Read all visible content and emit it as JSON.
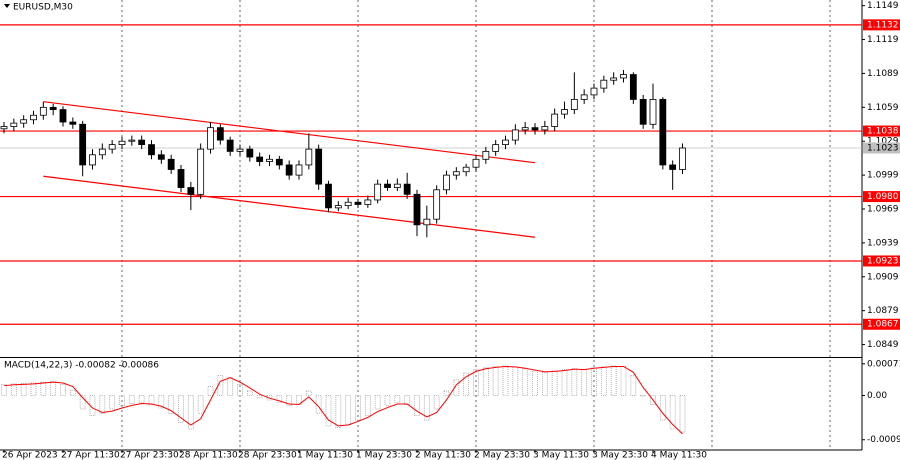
{
  "chart_data": [
    {
      "type": "candlestick",
      "title": "EURUSD,M30",
      "categories": [
        "26 Apr 2023",
        null,
        null,
        null,
        null,
        null,
        "27 Apr 11:30",
        null,
        null,
        null,
        null,
        null,
        "27 Apr 23:30",
        null,
        null,
        null,
        null,
        null,
        "28 Apr 11:30",
        null,
        null,
        null,
        null,
        null,
        "28 Apr 23:30",
        null,
        null,
        null,
        null,
        null,
        "1 May 11:30",
        null,
        null,
        null,
        null,
        null,
        "1 May 23:30",
        null,
        null,
        null,
        null,
        null,
        "2 May 11:30",
        null,
        null,
        null,
        null,
        null,
        "2 May 23:30",
        null,
        null,
        null,
        null,
        null,
        "3 May 11:30",
        null,
        null,
        null,
        null,
        null,
        "3 May 23:30",
        null,
        null,
        null,
        null,
        null,
        "4 May 11:30",
        null,
        null,
        null
      ],
      "open": [
        1.104,
        1.1042,
        1.1045,
        1.1048,
        1.1052,
        1.1059,
        1.1057,
        1.1046,
        1.1044,
        1.1008,
        1.1017,
        1.1022,
        1.1026,
        1.1029,
        1.103,
        1.1026,
        1.1017,
        1.1013,
        1.1004,
        1.0988,
        1.0982,
        1.1022,
        1.1041,
        1.103,
        1.102,
        1.1022,
        1.1015,
        1.1011,
        1.1013,
        1.1008,
        1.0999,
        1.1008,
        1.1022,
        1.0991,
        1.097,
        1.0972,
        1.0975,
        1.0973,
        1.0977,
        1.0991,
        1.0988,
        1.0991,
        1.0982,
        1.0955,
        1.096,
        1.0986,
        1.0999,
        1.1002,
        1.1006,
        1.1013,
        1.102,
        1.1026,
        1.103,
        1.1039,
        1.1041,
        1.1039,
        1.1042,
        1.1053,
        1.1057,
        1.1066,
        1.107,
        1.1076,
        1.1083,
        1.1085,
        1.1088,
        1.1066,
        1.1044,
        1.1066,
        1.1008,
        1.1004
      ],
      "high": [
        1.1046,
        1.1049,
        1.1052,
        1.1056,
        1.1064,
        1.1062,
        1.106,
        1.105,
        1.1047,
        1.1022,
        1.1027,
        1.103,
        1.1033,
        1.1034,
        1.1034,
        1.103,
        1.1021,
        1.1017,
        1.1008,
        1.0993,
        1.1027,
        1.1046,
        1.1044,
        1.1033,
        1.1026,
        1.1025,
        1.1019,
        1.1017,
        1.1016,
        1.1012,
        1.1012,
        1.1036,
        1.1026,
        1.0994,
        1.0976,
        1.0979,
        1.0978,
        1.0981,
        1.0995,
        1.0995,
        1.0996,
        1.1001,
        1.0986,
        1.0972,
        1.099,
        1.1003,
        1.1006,
        1.1009,
        1.1017,
        1.1024,
        1.103,
        1.1034,
        1.1044,
        1.1046,
        1.1045,
        1.1047,
        1.1058,
        1.1064,
        1.109,
        1.1075,
        1.108,
        1.1087,
        1.109,
        1.1092,
        1.109,
        1.107,
        1.108,
        1.1068,
        1.1012,
        1.1027
      ],
      "low": [
        1.1036,
        1.1038,
        1.1041,
        1.1044,
        1.1048,
        1.1052,
        1.1042,
        1.104,
        1.0998,
        1.1004,
        1.1013,
        1.1018,
        1.1022,
        1.1025,
        1.1022,
        1.1013,
        1.1009,
        1.1,
        1.0984,
        1.0968,
        1.0978,
        1.1018,
        1.1026,
        1.1016,
        1.1016,
        1.1011,
        1.1007,
        1.1007,
        1.1004,
        1.0995,
        1.0995,
        1.1004,
        1.0986,
        1.0966,
        1.0967,
        1.0969,
        1.097,
        1.097,
        1.0974,
        1.0985,
        1.0985,
        1.0978,
        1.0945,
        1.0944,
        1.0956,
        1.0982,
        1.0995,
        1.0998,
        1.1002,
        1.1009,
        1.1016,
        1.1022,
        1.1026,
        1.1035,
        1.1035,
        1.1035,
        1.1038,
        1.1049,
        1.1053,
        1.1062,
        1.1066,
        1.1072,
        1.1079,
        1.1081,
        1.1062,
        1.104,
        1.104,
        1.1004,
        1.0986,
        1.1
      ],
      "close": [
        1.1042,
        1.1045,
        1.1048,
        1.1052,
        1.1059,
        1.1057,
        1.1046,
        1.1044,
        1.1008,
        1.1017,
        1.1022,
        1.1026,
        1.1029,
        1.103,
        1.1026,
        1.1017,
        1.1013,
        1.1004,
        1.0988,
        1.0982,
        1.1022,
        1.1041,
        1.103,
        1.102,
        1.1022,
        1.1015,
        1.1011,
        1.1013,
        1.1008,
        1.0999,
        1.1008,
        1.1022,
        1.0991,
        1.097,
        1.0972,
        1.0975,
        1.0973,
        1.0977,
        1.0991,
        1.0988,
        1.0991,
        1.0982,
        1.0955,
        1.096,
        1.0986,
        1.0999,
        1.1002,
        1.1006,
        1.1013,
        1.102,
        1.1026,
        1.103,
        1.1039,
        1.1041,
        1.1039,
        1.1042,
        1.1053,
        1.1057,
        1.1066,
        1.107,
        1.1076,
        1.1083,
        1.1085,
        1.1088,
        1.1066,
        1.1044,
        1.1066,
        1.1008,
        1.1004,
        1.1023
      ],
      "color": "#000000",
      "ylim": [
        1.0838,
        1.1154
      ],
      "yticks": [
        1.1149,
        1.1119,
        1.1089,
        1.1059,
        1.1029,
        1.0999,
        1.0969,
        1.0939,
        1.0909,
        1.0879,
        1.0849
      ],
      "hlines": [
        1.1132,
        1.1038,
        {
          "value": 1.098,
          "label": "1.0980"
        },
        1.0923,
        1.0867
      ],
      "hline_color": "#ff0000",
      "trendlines": [
        {
          "x": [
            4,
            54
          ],
          "y": [
            1.1064,
            1.101
          ]
        },
        {
          "x": [
            4,
            54
          ],
          "y": [
            1.0998,
            1.0944
          ]
        }
      ],
      "current_price": 1.1023,
      "current_price_color": "#c0c0c0"
    },
    {
      "type": "macd",
      "title": "MACD(14,22,3) -0.00082 -0.00086",
      "histogram": {
        "color": "#a0a0a0",
        "values": [
          0.00025,
          0.00026,
          0.00027,
          0.00028,
          0.0003,
          0.00032,
          0.00025,
          0.00012,
          -0.0003,
          -0.00045,
          -0.0004,
          -0.0003,
          -0.00022,
          -0.00018,
          -0.00015,
          -0.0002,
          -0.00028,
          -0.0004,
          -0.0006,
          -0.00075,
          -0.0004,
          0.0002,
          0.00045,
          0.0004,
          0.00025,
          0.0001,
          -5e-05,
          -0.0001,
          -0.00015,
          -0.00022,
          -0.0002,
          0.0001,
          -0.0004,
          -0.00068,
          -0.00072,
          -0.00065,
          -0.00055,
          -0.00045,
          -0.0003,
          -0.00022,
          -0.00015,
          -0.0002,
          -0.00045,
          -0.00055,
          -0.0003,
          0.0001,
          0.00035,
          0.0005,
          0.00058,
          0.00062,
          0.00065,
          0.00066,
          0.00064,
          0.0006,
          0.00055,
          0.00052,
          0.00055,
          0.00058,
          0.0006,
          0.00058,
          0.00062,
          0.00064,
          0.00066,
          0.00065,
          0.00045,
          0.0,
          -0.0002,
          -0.00055,
          -0.00075,
          -0.00082
        ]
      },
      "signal": {
        "color": "#ff0000",
        "values": [
          0.00022,
          0.00024,
          0.00025,
          0.00026,
          0.00028,
          0.0003,
          0.00028,
          0.0002,
          -5e-05,
          -0.00028,
          -0.00038,
          -0.00035,
          -0.00028,
          -0.00022,
          -0.00018,
          -0.00019,
          -0.00024,
          -0.00034,
          -0.0005,
          -0.00066,
          -0.00052,
          -0.0001,
          0.00032,
          0.0004,
          0.0003,
          0.00017,
          3e-05,
          -6e-05,
          -0.00012,
          -0.00019,
          -0.0002,
          -3e-05,
          -0.00025,
          -0.00055,
          -0.00068,
          -0.00066,
          -0.00058,
          -0.00049,
          -0.00036,
          -0.00027,
          -0.00019,
          -0.00019,
          -0.00035,
          -0.00048,
          -0.00038,
          -0.0001,
          0.00024,
          0.00042,
          0.00054,
          0.0006,
          0.00063,
          0.00065,
          0.00064,
          0.00061,
          0.00057,
          0.00053,
          0.00054,
          0.00056,
          0.00059,
          0.00058,
          0.00061,
          0.00063,
          0.00065,
          0.00065,
          0.00052,
          0.00018,
          -0.0001,
          -0.0004,
          -0.00065,
          -0.00086
        ]
      },
      "ylim": [
        -0.00122,
        0.00084
      ],
      "yticks": [
        0.00071,
        {
          "value": 0,
          "label": "0.00"
        },
        -0.00099
      ]
    }
  ]
}
